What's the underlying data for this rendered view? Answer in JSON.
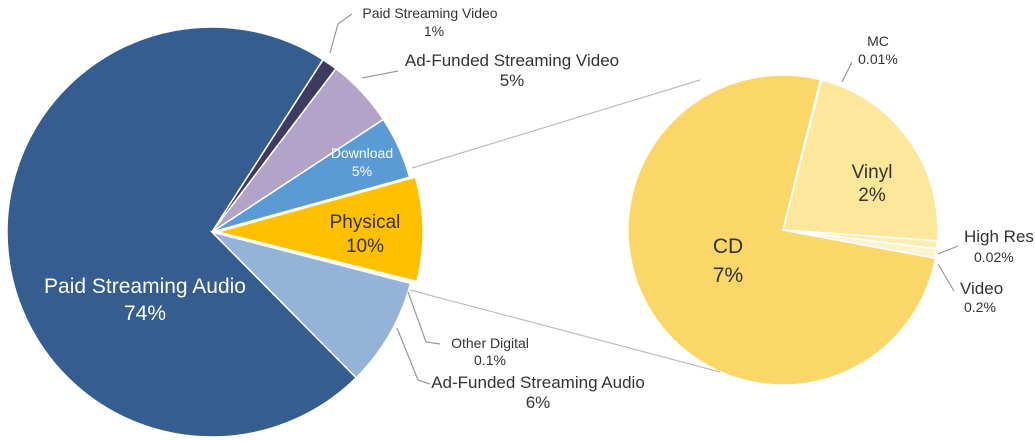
{
  "chart_data": [
    {
      "type": "pie",
      "title": "",
      "slices": [
        {
          "label": "Paid Streaming Audio",
          "value_text": "74%",
          "value": 74,
          "color": "#355d8f"
        },
        {
          "label": "Paid Streaming Video",
          "value_text": "1%",
          "value": 1,
          "color": "#3f3a60"
        },
        {
          "label": "Ad-Funded Streaming Video",
          "value_text": "5%",
          "value": 5,
          "color": "#b2a3c8"
        },
        {
          "label": "Download",
          "value_text": "5%",
          "value": 5,
          "color": "#5b9bd5"
        },
        {
          "label": "Physical",
          "value_text": "10%",
          "value": 10,
          "color": "#ffc000"
        },
        {
          "label": "Other Digital",
          "value_text": "0.1%",
          "value": 0.1,
          "color": "#8db0d9"
        },
        {
          "label": "Ad-Funded Streaming Audio",
          "value_text": "6%",
          "value": 6,
          "color": "#95b3d7"
        }
      ],
      "exploded_slice": "Physical"
    },
    {
      "type": "pie",
      "title": "",
      "slices": [
        {
          "label": "CD",
          "value_text": "7%",
          "value": 7,
          "color": "#fbd76a"
        },
        {
          "label": "MC",
          "value_text": "0.01%",
          "value": 0.01,
          "color": "#fbd76a"
        },
        {
          "label": "Vinyl",
          "value_text": "2%",
          "value": 2,
          "color": "#fde79b"
        },
        {
          "label": "High Res",
          "value_text": "0.02%",
          "value": 0.02,
          "color": "#fdedb5"
        },
        {
          "label": "Video",
          "value_text": "0.2%",
          "value": 0.2,
          "color": "#fef3cc"
        }
      ]
    }
  ]
}
